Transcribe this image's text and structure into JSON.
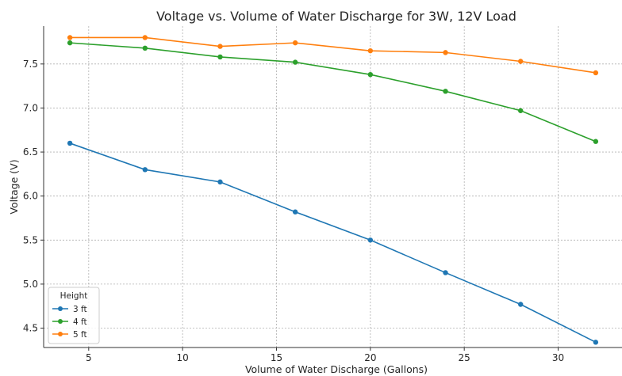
{
  "chart_data": {
    "type": "line",
    "title": "Voltage vs. Volume of Water Discharge for 3W, 12V Load",
    "xlabel": "Volume of Water Discharge (Gallons)",
    "ylabel": "Voltage (V)",
    "xlim": [
      2.6,
      33.4
    ],
    "ylim": [
      4.28,
      7.93
    ],
    "x_ticks": [
      5,
      10,
      15,
      20,
      25,
      30
    ],
    "y_ticks": [
      4.5,
      5.0,
      5.5,
      6.0,
      6.5,
      7.0,
      7.5
    ],
    "x_tick_labels": [
      "5",
      "10",
      "15",
      "20",
      "25",
      "30"
    ],
    "y_tick_labels": [
      "4.5",
      "5.0",
      "5.5",
      "6.0",
      "6.5",
      "7.0",
      "7.5"
    ],
    "grid": true,
    "legend": {
      "title": "Height",
      "placement": "lower-left"
    },
    "x": [
      4,
      8,
      12,
      16,
      20,
      24,
      28,
      32
    ],
    "series": [
      {
        "name": "3 ft",
        "color": "#1f77b4",
        "values": [
          6.6,
          6.3,
          6.16,
          5.82,
          5.5,
          5.13,
          4.77,
          4.34
        ]
      },
      {
        "name": "4 ft",
        "color": "#2ca02c",
        "values": [
          7.74,
          7.68,
          7.58,
          7.52,
          7.38,
          7.19,
          6.97,
          6.62
        ]
      },
      {
        "name": "5 ft",
        "color": "#ff7f0e",
        "values": [
          7.8,
          7.8,
          7.7,
          7.74,
          7.65,
          7.63,
          7.53,
          7.4
        ]
      }
    ]
  }
}
